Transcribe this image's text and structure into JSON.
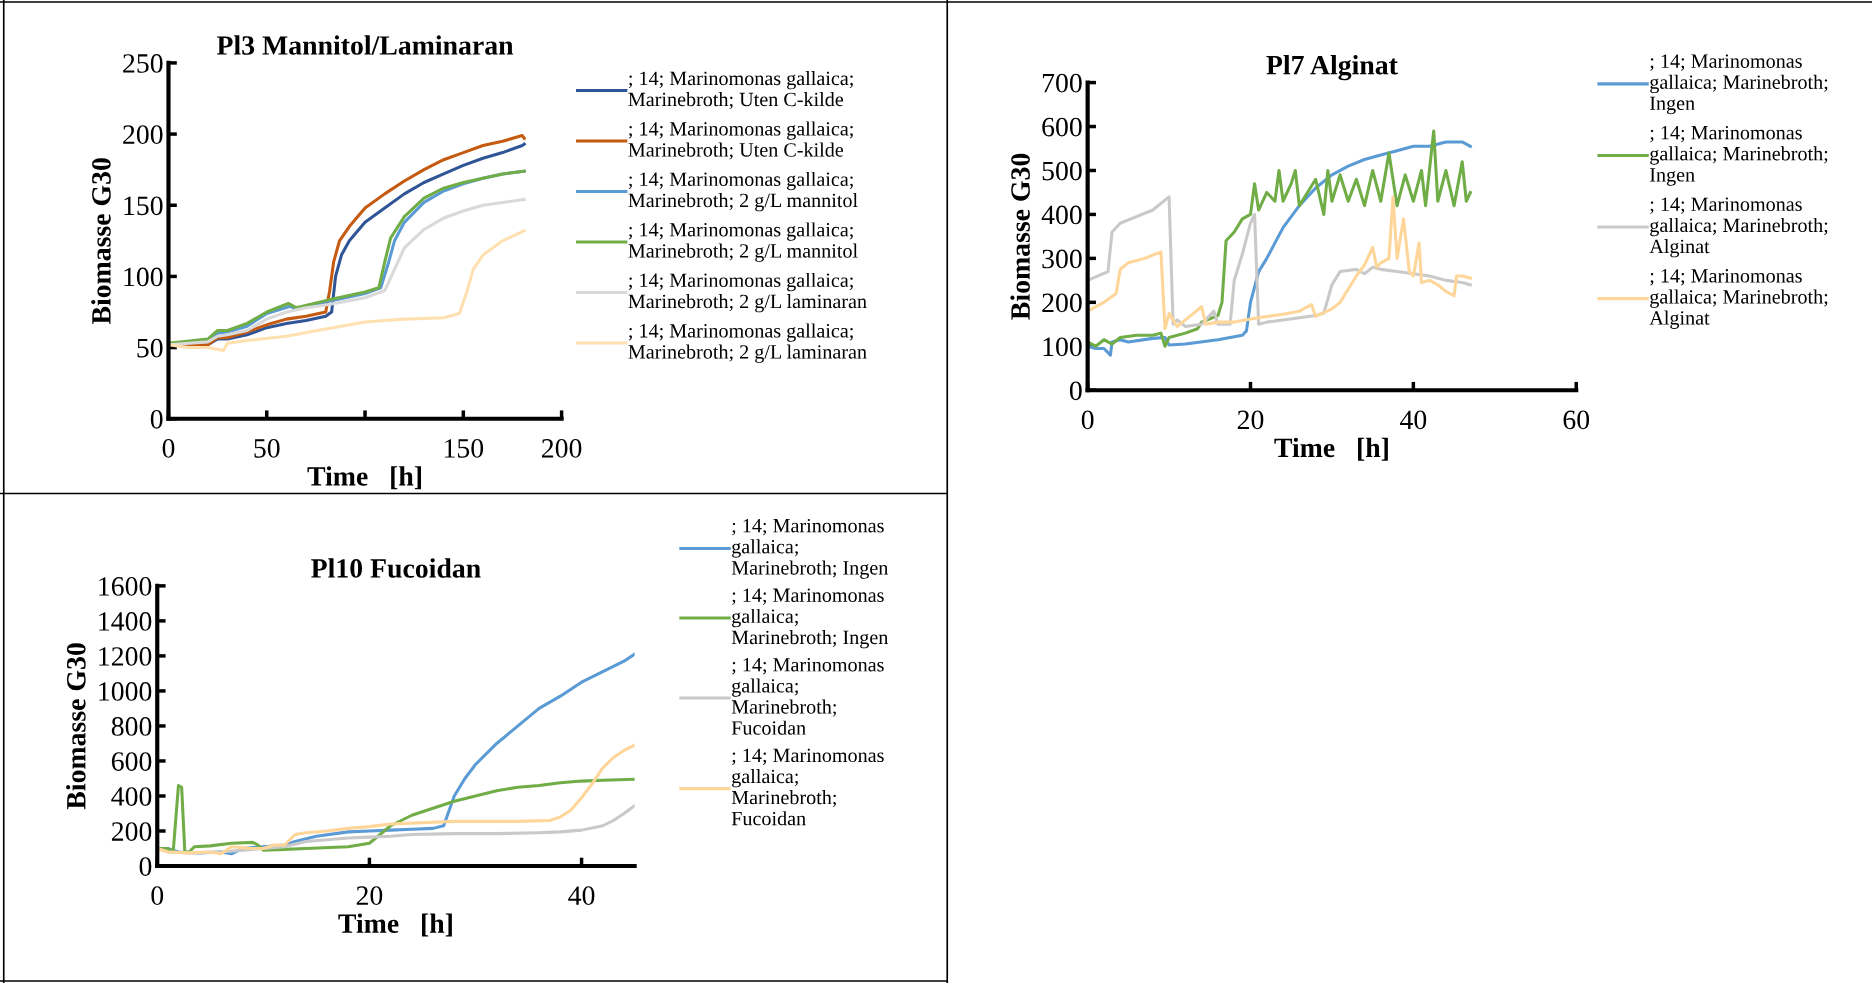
{
  "chart_data": [
    {
      "type": "line",
      "title": "Pl3 Mannitol/Laminaran",
      "xlabel": "Time   [h]",
      "ylabel": "Biomasse G30",
      "xlim": [
        0,
        200
      ],
      "ylim": [
        0,
        250
      ],
      "xticks": [
        0,
        50,
        {
          "value": 100,
          "label": null
        },
        150,
        200
      ],
      "yticks": [
        0,
        50,
        100,
        150,
        200,
        250
      ],
      "grid": false,
      "legend": "right",
      "marker": "none",
      "series": [
        {
          "name": "; 14; Marinomonas gallaica; Marinebroth; Uten C-kilde",
          "color": "#2f5597",
          "x": [
            0,
            10,
            20,
            25,
            30,
            40,
            50,
            60,
            70,
            80,
            83,
            85,
            88,
            92,
            100,
            110,
            120,
            130,
            140,
            150,
            160,
            170,
            180,
            181
          ],
          "values": [
            52,
            51,
            52,
            56,
            56,
            59,
            64,
            67,
            69,
            72,
            75,
            100,
            115,
            125,
            138,
            148,
            158,
            166,
            172,
            178,
            183,
            187,
            192,
            193
          ]
        },
        {
          "name": "; 14; Marinomonas gallaica; Marinebroth; Uten C-kilde",
          "color": "#c55a11",
          "x": [
            0,
            20,
            25,
            30,
            40,
            50,
            60,
            70,
            80,
            82,
            84,
            87,
            92,
            100,
            110,
            120,
            130,
            140,
            150,
            160,
            170,
            180,
            181
          ],
          "values": [
            52,
            52,
            57,
            57,
            61,
            66,
            70,
            72,
            75,
            90,
            110,
            125,
            135,
            148,
            158,
            167,
            175,
            182,
            187,
            192,
            195,
            199,
            197
          ]
        },
        {
          "name": "; 14; Marinomonas gallaica; Marinebroth; 2 g/L mannitol",
          "color": "#5b9bd5",
          "x": [
            0,
            10,
            20,
            25,
            30,
            40,
            50,
            62,
            65,
            80,
            100,
            108,
            112,
            115,
            120,
            130,
            140,
            150,
            160,
            170,
            181
          ],
          "values": [
            53,
            53,
            55,
            60,
            61,
            65,
            74,
            79,
            77,
            82,
            88,
            92,
            110,
            125,
            138,
            152,
            160,
            165,
            169,
            172,
            174
          ]
        },
        {
          "name": "; 14; Marinomonas gallaica; Marinebroth; 2 g/L mannitol",
          "color": "#70ad47",
          "x": [
            0,
            20,
            25,
            30,
            40,
            50,
            61,
            65,
            80,
            100,
            107,
            110,
            113,
            120,
            130,
            140,
            150,
            160,
            170,
            181
          ],
          "values": [
            53,
            56,
            62,
            62,
            67,
            75,
            81,
            78,
            83,
            89,
            92,
            110,
            127,
            142,
            155,
            162,
            166,
            169,
            172,
            174
          ]
        },
        {
          "name": "; 14; Marinomonas gallaica; Marinebroth; 2 g/L laminaran",
          "color": "#d9d9d9",
          "x": [
            0,
            20,
            25,
            30,
            40,
            50,
            60,
            70,
            80,
            100,
            110,
            115,
            120,
            130,
            140,
            150,
            160,
            170,
            181
          ],
          "values": [
            52,
            54,
            58,
            59,
            62,
            70,
            75,
            78,
            80,
            85,
            90,
            105,
            120,
            133,
            141,
            146,
            150,
            152,
            154
          ]
        },
        {
          "name": "; 14; Marinomonas gallaica; Marinebroth; 2 g/L laminaran",
          "color": "#ffe0b0",
          "x": [
            0,
            10,
            20,
            28,
            30,
            40,
            60,
            80,
            100,
            110,
            120,
            140,
            148,
            152,
            155,
            160,
            170,
            181
          ],
          "values": [
            52,
            50,
            50,
            48,
            53,
            55,
            58,
            63,
            68,
            69,
            70,
            71,
            74,
            90,
            105,
            115,
            125,
            132
          ]
        }
      ]
    },
    {
      "type": "line",
      "title": "Pl7 Alginat",
      "xlabel": "Time   [h]",
      "ylabel": "Biomasse G30",
      "xlim": [
        0,
        60
      ],
      "ylim": [
        0,
        700
      ],
      "xticks": [
        0,
        20,
        40,
        60
      ],
      "yticks": [
        0,
        100,
        200,
        300,
        400,
        500,
        600,
        700
      ],
      "grid": false,
      "legend": "right",
      "marker": "none",
      "series": [
        {
          "name": "; 14; Marinomonas gallaica; Marinebroth; Ingen",
          "color": "#5b9bd5",
          "x": [
            0,
            1,
            2,
            2.8,
            3,
            4,
            5,
            8,
            9.5,
            10,
            12,
            16,
            19,
            19.5,
            20,
            21,
            22,
            24,
            26,
            28,
            30,
            32,
            34,
            36,
            38,
            40,
            42,
            44,
            46,
            47
          ],
          "values": [
            100,
            95,
            95,
            80,
            110,
            115,
            110,
            118,
            120,
            103,
            105,
            115,
            125,
            135,
            200,
            270,
            300,
            370,
            420,
            460,
            490,
            510,
            525,
            535,
            545,
            555,
            555,
            565,
            565,
            555
          ]
        },
        {
          "name": "; 14; Marinomonas gallaica; Marinebroth; Ingen",
          "color": "#70ad47",
          "x": [
            0,
            1,
            2,
            3,
            4,
            6,
            8,
            9,
            9.5,
            10,
            12,
            13.5,
            14,
            16,
            16.5,
            17,
            18,
            19,
            20,
            20.5,
            21,
            22,
            23,
            23.5,
            24,
            25,
            25.5,
            26,
            27,
            28,
            29,
            29.5,
            30,
            31,
            32,
            33,
            34,
            35,
            36,
            37,
            38,
            39,
            40,
            41,
            41.5,
            42.5,
            43,
            44,
            45,
            46,
            46.5,
            47
          ],
          "values": [
            110,
            100,
            115,
            105,
            120,
            125,
            125,
            130,
            100,
            120,
            130,
            140,
            155,
            170,
            200,
            340,
            360,
            390,
            400,
            470,
            410,
            450,
            430,
            500,
            430,
            470,
            500,
            420,
            450,
            480,
            400,
            500,
            430,
            490,
            430,
            480,
            420,
            500,
            430,
            540,
            420,
            490,
            430,
            500,
            420,
            590,
            430,
            500,
            420,
            520,
            430,
            450
          ]
        },
        {
          "name": "; 14; Marinomonas gallaica; Marinebroth; Alginat",
          "color": "#c9c9c9",
          "x": [
            0,
            2.5,
            3,
            4,
            6,
            8,
            10,
            10.5,
            11,
            12,
            14,
            15.5,
            16,
            17.5,
            18,
            19,
            20,
            20.5,
            21,
            22,
            24,
            26,
            28,
            29,
            30,
            31,
            33,
            34,
            35,
            36,
            38,
            40,
            42,
            44,
            46,
            47
          ],
          "values": [
            250,
            270,
            360,
            380,
            395,
            410,
            440,
            150,
            160,
            145,
            150,
            180,
            150,
            150,
            250,
            310,
            380,
            400,
            150,
            155,
            160,
            165,
            170,
            175,
            240,
            270,
            275,
            265,
            280,
            275,
            270,
            265,
            260,
            250,
            245,
            240
          ]
        },
        {
          "name": "; 14; Marinomonas gallaica; Marinebroth; Alginat",
          "color": "#ffd699",
          "x": [
            0,
            2,
            3.5,
            4,
            5,
            7,
            9,
            9.5,
            10,
            11,
            12,
            13,
            14,
            14.5,
            16,
            18,
            20,
            22,
            24,
            26,
            27.5,
            28,
            30,
            31,
            32,
            33,
            34,
            35,
            35.5,
            36,
            37,
            37.5,
            38,
            38.8,
            39.5,
            40,
            40.7,
            41,
            42,
            43,
            44,
            45,
            45.3,
            46,
            47
          ],
          "values": [
            180,
            200,
            220,
            275,
            290,
            300,
            315,
            140,
            175,
            145,
            160,
            175,
            190,
            150,
            155,
            155,
            162,
            168,
            173,
            180,
            195,
            168,
            185,
            200,
            230,
            260,
            285,
            325,
            280,
            290,
            300,
            440,
            300,
            390,
            270,
            260,
            335,
            245,
            250,
            240,
            225,
            215,
            260,
            260,
            255
          ]
        }
      ]
    },
    {
      "type": "line",
      "title": "Pl10 Fucoidan",
      "xlabel": "Time   [h]",
      "ylabel": "Biomasse G30",
      "xlim": [
        0,
        45
      ],
      "ylim": [
        0,
        1600
      ],
      "xticks": [
        0,
        20,
        40
      ],
      "yticks": [
        0,
        200,
        400,
        600,
        800,
        1000,
        1200,
        1400,
        1600
      ],
      "grid": false,
      "legend": "right",
      "marker": "none",
      "series": [
        {
          "name": "; 14; Marinomonas gallaica; Marinebroth; Ingen",
          "color": "#5b9bd5",
          "x": [
            0,
            1,
            2,
            4,
            6,
            7,
            8,
            10,
            12,
            13,
            15,
            18,
            20,
            22,
            24,
            26,
            27,
            28,
            29,
            30,
            32,
            34,
            36,
            38,
            40,
            42,
            44,
            45
          ],
          "values": [
            100,
            100,
            80,
            75,
            80,
            70,
            100,
            110,
            120,
            140,
            170,
            195,
            200,
            205,
            210,
            215,
            230,
            400,
            500,
            580,
            700,
            800,
            900,
            970,
            1050,
            1110,
            1170,
            1210
          ]
        },
        {
          "name": "; 14; Marinomonas gallaica; Marinebroth; Ingen",
          "color": "#70ad47",
          "x": [
            0,
            1,
            1.5,
            2,
            2.3,
            2.6,
            3,
            3.5,
            5,
            7,
            9,
            9.5,
            10,
            12,
            14,
            18,
            20,
            21,
            22,
            24,
            26,
            28,
            30,
            32,
            34,
            36,
            38,
            40,
            42,
            45
          ],
          "values": [
            100,
            100,
            80,
            460,
            450,
            80,
            80,
            110,
            115,
            130,
            135,
            120,
            90,
            95,
            100,
            110,
            130,
            180,
            230,
            290,
            330,
            370,
            400,
            430,
            450,
            460,
            475,
            485,
            490,
            495
          ]
        },
        {
          "name": "; 14; Marinomonas gallaica; Marinebroth; Fucoidan",
          "color": "#c9c9c9",
          "x": [
            0,
            1,
            3,
            6,
            10,
            12,
            14,
            16,
            18,
            20,
            22,
            24,
            28,
            32,
            36,
            38,
            40,
            42,
            43,
            44,
            45
          ],
          "values": [
            100,
            80,
            75,
            80,
            100,
            110,
            140,
            150,
            160,
            165,
            170,
            180,
            185,
            185,
            190,
            195,
            205,
            230,
            260,
            300,
            345
          ]
        },
        {
          "name": "; 14; Marinomonas gallaica; Marinebroth; Fucoidan",
          "color": "#ffd699",
          "x": [
            0,
            1,
            3,
            5,
            6,
            7,
            9,
            10,
            11,
            12,
            13,
            14,
            16,
            18,
            20,
            22,
            24,
            26,
            28,
            30,
            34,
            37,
            38,
            39,
            40,
            41,
            42,
            43,
            44,
            45
          ],
          "values": [
            100,
            80,
            75,
            80,
            70,
            110,
            100,
            100,
            120,
            120,
            180,
            190,
            200,
            215,
            225,
            240,
            245,
            250,
            255,
            255,
            255,
            260,
            280,
            320,
            390,
            470,
            560,
            620,
            660,
            690
          ]
        }
      ]
    }
  ]
}
